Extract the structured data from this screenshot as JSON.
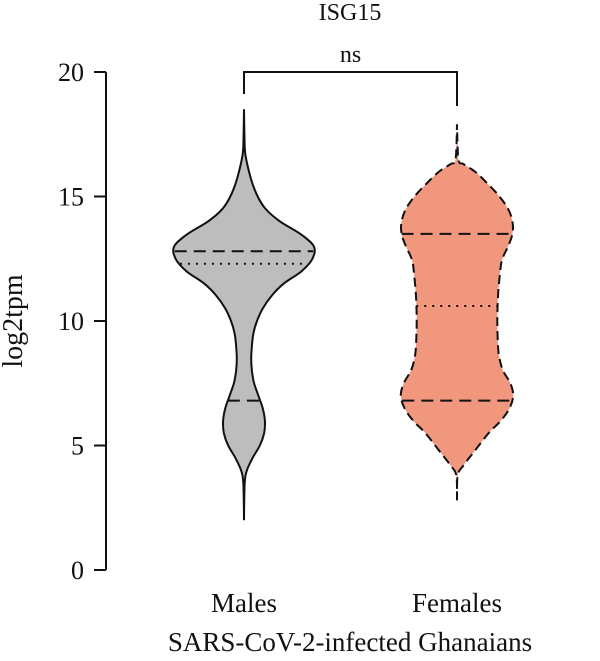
{
  "chart_data": {
    "type": "violin",
    "title": "ISG15",
    "xlabel": "SARS-CoV-2-infected Ghanaians",
    "ylabel": "log2tpm",
    "ylim": [
      0,
      20
    ],
    "yticks": [
      "0",
      "5",
      "10",
      "15",
      "20"
    ],
    "grid": false,
    "significance": {
      "label": "ns",
      "between": [
        "Males",
        "Females"
      ]
    },
    "colors": {
      "Males": "#bdbdbd",
      "Females": "#f0977e",
      "line": "#111111"
    },
    "groups": [
      {
        "name": "Males",
        "outline_style": "solid",
        "min": 2.0,
        "max": 18.5,
        "quartile_low": 6.8,
        "median": 12.3,
        "quartile_high": 12.8,
        "density": [
          [
            2.0,
            0.0
          ],
          [
            3.5,
            0.01
          ],
          [
            4.0,
            0.04
          ],
          [
            4.5,
            0.12
          ],
          [
            5.0,
            0.22
          ],
          [
            5.5,
            0.28
          ],
          [
            6.0,
            0.29
          ],
          [
            6.5,
            0.26
          ],
          [
            7.0,
            0.2
          ],
          [
            7.5,
            0.14
          ],
          [
            8.0,
            0.11
          ],
          [
            8.5,
            0.1
          ],
          [
            9.0,
            0.11
          ],
          [
            9.5,
            0.13
          ],
          [
            10.0,
            0.18
          ],
          [
            10.5,
            0.26
          ],
          [
            11.0,
            0.38
          ],
          [
            11.5,
            0.55
          ],
          [
            12.0,
            0.8
          ],
          [
            12.5,
            0.95
          ],
          [
            13.0,
            0.97
          ],
          [
            13.5,
            0.78
          ],
          [
            14.0,
            0.5
          ],
          [
            14.5,
            0.3
          ],
          [
            15.0,
            0.19
          ],
          [
            15.5,
            0.12
          ],
          [
            16.0,
            0.07
          ],
          [
            16.5,
            0.03
          ],
          [
            17.0,
            0.01
          ],
          [
            18.5,
            0.0
          ]
        ]
      },
      {
        "name": "Females",
        "outline_style": "dashed",
        "min": 2.8,
        "max": 17.9,
        "quartile_low": 6.8,
        "median": 10.6,
        "quartile_high": 13.5,
        "density": [
          [
            2.8,
            0.0
          ],
          [
            3.8,
            0.01
          ],
          [
            4.2,
            0.09
          ],
          [
            4.8,
            0.25
          ],
          [
            5.5,
            0.44
          ],
          [
            6.0,
            0.61
          ],
          [
            6.5,
            0.73
          ],
          [
            7.0,
            0.78
          ],
          [
            7.5,
            0.74
          ],
          [
            8.0,
            0.64
          ],
          [
            8.5,
            0.59
          ],
          [
            9.0,
            0.57
          ],
          [
            10.0,
            0.56
          ],
          [
            11.0,
            0.57
          ],
          [
            12.0,
            0.6
          ],
          [
            12.5,
            0.63
          ],
          [
            13.0,
            0.71
          ],
          [
            13.5,
            0.77
          ],
          [
            14.0,
            0.77
          ],
          [
            14.5,
            0.71
          ],
          [
            15.0,
            0.59
          ],
          [
            15.5,
            0.43
          ],
          [
            16.0,
            0.25
          ],
          [
            16.3,
            0.09
          ],
          [
            16.5,
            0.02
          ],
          [
            17.9,
            0.0
          ]
        ]
      }
    ]
  }
}
